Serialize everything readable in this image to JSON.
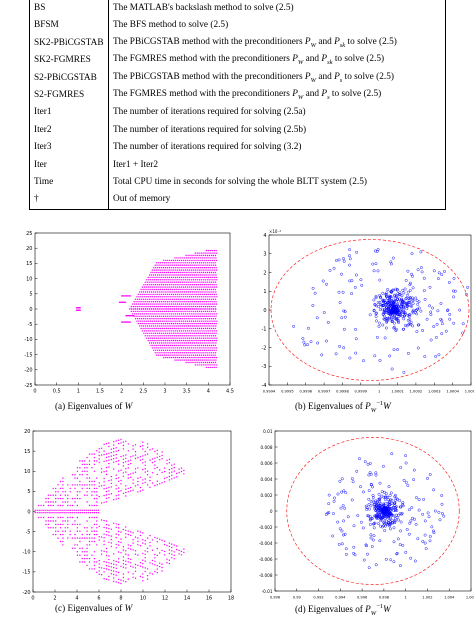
{
  "table": {
    "rows": [
      {
        "abbr": "BS",
        "desc": "The MATLAB's backslash method to solve (2.5)"
      },
      {
        "abbr": "BFSM",
        "desc": "The BFS method to solve (2.5)"
      },
      {
        "abbr": "SK2-PBiCGSTAB",
        "desc_pre": "The PBiCGSTAB method with the preconditioners ",
        "p1": "P",
        "p1sub": "W",
        "mid": " and ",
        "p2": "P",
        "p2sub": "sk",
        "desc_post": " to solve (2.5)"
      },
      {
        "abbr": "SK2-FGMRES",
        "desc_pre": "The FGMRES method with the preconditioners ",
        "p1": "P",
        "p1sub": "W",
        "mid": " and ",
        "p2": "P",
        "p2sub": "sk",
        "desc_post": " to solve (2.5)"
      },
      {
        "abbr": "S2-PBiCGSTAB",
        "desc_pre": "The PBiCGSTAB method with the preconditioners ",
        "p1": "P",
        "p1sub": "W",
        "mid": " and ",
        "p2": "P",
        "p2sub": "s",
        "desc_post": " to solve (2.5)"
      },
      {
        "abbr": "S2-FGMRES",
        "desc_pre": "The FGMRES method with the preconditioners ",
        "p1": "P",
        "p1sub": "W",
        "mid": " and ",
        "p2": "P",
        "p2sub": "s",
        "desc_post": " to solve (2.5)"
      },
      {
        "abbr": "Iter1",
        "desc": "The number of iterations required for solving (2.5a)"
      },
      {
        "abbr": "Iter2",
        "desc": "The number of iterations required for solving (2.5b)"
      },
      {
        "abbr": "Iter3",
        "desc": "The number of iterations required for solving (3.2)"
      },
      {
        "abbr": "Iter",
        "desc": "Iter1 + Iter2"
      },
      {
        "abbr": "Time",
        "desc": "Total CPU time in seconds for solving the whole BLTT system (2.5)"
      },
      {
        "abbr": "†",
        "desc": "Out of memory"
      }
    ]
  },
  "captions": {
    "a": {
      "label": "(a) Eigenvalues of ",
      "sym": "W"
    },
    "b": {
      "label": "(b) Eigenvalues of ",
      "sym": "P",
      "sub": "W",
      "sup": "−1",
      "tail": "W"
    },
    "c": {
      "label": "(c) Eigenvalues of ",
      "sym": "W"
    },
    "d": {
      "label": "(d) Eigenvalues of ",
      "sym": "P",
      "sub": "W",
      "sup": "−1",
      "tail": "W"
    }
  },
  "colors": {
    "magenta": "#ff00ff",
    "blue": "#0000ff",
    "red_dashed": "#ff0000"
  },
  "chart_data": [
    {
      "id": "a",
      "type": "scatter",
      "xlim": [
        0,
        4.5
      ],
      "ylim": [
        -25,
        25
      ],
      "xticks": [
        "0",
        "0.5",
        "1",
        "1.5",
        "2",
        "2.5",
        "3",
        "3.5",
        "4",
        "4.5"
      ],
      "yticks": [
        "-25",
        "-20",
        "-15",
        "-10",
        "-5",
        "0",
        "5",
        "10",
        "15",
        "20",
        "25"
      ],
      "series": [
        {
          "color": "#ff00ff",
          "marker": "point",
          "description_values": {
            "real_range": [
              1,
              4.2
            ],
            "imag_range": [
              -20,
              20
            ]
          }
        }
      ]
    },
    {
      "id": "b",
      "type": "scatter",
      "xlim": [
        0.9994,
        1.0006
      ],
      "ylim": [
        -0.0004,
        0.0004
      ],
      "x_multiplier": "×10⁻⁴",
      "xticks": [
        "0.9994",
        "0.9995",
        "0.9996",
        "0.9997",
        "0.9998",
        "0.9999",
        "1",
        "1.0001",
        "1.0002",
        "1.0003",
        "1.0004",
        "1.0005"
      ],
      "yticks": [
        "-4",
        "-3",
        "-2",
        "-1",
        "0",
        "1",
        "2",
        "3",
        "4"
      ],
      "series": [
        {
          "color": "#0000ff",
          "marker": "circle"
        },
        {
          "color": "#ff0000",
          "marker": "dashed-circle"
        }
      ]
    },
    {
      "id": "c",
      "type": "scatter",
      "xlim": [
        0,
        18
      ],
      "ylim": [
        -20,
        20
      ],
      "xticks": [
        "0",
        "2",
        "4",
        "6",
        "8",
        "10",
        "12",
        "14",
        "16",
        "18"
      ],
      "yticks": [
        "-20",
        "-15",
        "-10",
        "-5",
        "0",
        "5",
        "10",
        "15",
        "20"
      ],
      "series": [
        {
          "color": "#ff00ff",
          "marker": "point"
        }
      ]
    },
    {
      "id": "d",
      "type": "scatter",
      "xlim": [
        0.994,
        1.006
      ],
      "ylim": [
        -0.01,
        0.01
      ],
      "xticks": [
        "0.996",
        "0.99",
        "0.992",
        "0.994",
        "0.996",
        "0.998",
        "1",
        "1.002",
        "1.004",
        "1.006"
      ],
      "yticks": [
        "-0.01",
        "-0.008",
        "-0.006",
        "-0.004",
        "-0.002",
        "0",
        "0.002",
        "0.004",
        "0.006",
        "0.008",
        "0.01"
      ],
      "series": [
        {
          "color": "#0000ff",
          "marker": "circle"
        },
        {
          "color": "#ff0000",
          "marker": "dashed-circle"
        }
      ]
    }
  ]
}
